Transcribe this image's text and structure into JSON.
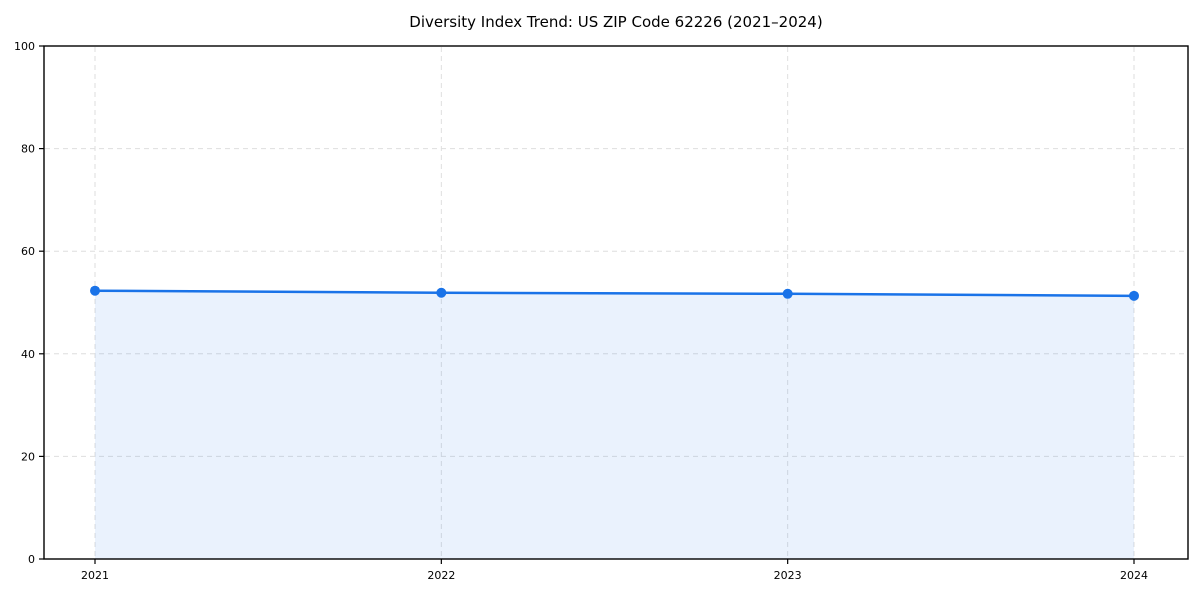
{
  "chart_data": {
    "type": "line",
    "title": "Diversity Index Trend: US ZIP Code 62226 (2021–2024)",
    "xlabel": "",
    "ylabel": "",
    "categories": [
      "2021",
      "2022",
      "2023",
      "2024"
    ],
    "series": [
      {
        "name": "Diversity Index",
        "values": [
          52.3,
          51.9,
          51.7,
          51.3
        ]
      }
    ],
    "ylim": [
      0,
      100
    ],
    "yticks": [
      0,
      20,
      40,
      60,
      80,
      100
    ],
    "grid": "dashed",
    "legend": "none",
    "marker": "circle",
    "area_fill": true,
    "colors": {
      "line": "#1a73e8",
      "marker": "#1a73e8",
      "area": "rgba(26,115,232,0.09)",
      "grid": "#dedede",
      "spine": "#000000",
      "background": "#ffffff",
      "title_text": "#000000",
      "tick_text": "#000000"
    }
  }
}
